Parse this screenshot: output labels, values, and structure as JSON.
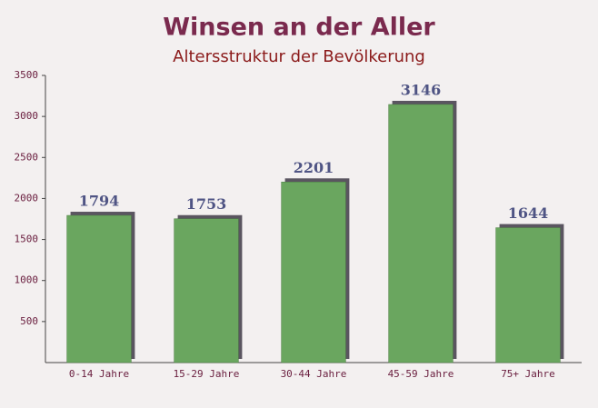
{
  "chart_data": {
    "type": "bar",
    "title": "Winsen an der Aller",
    "subtitle": "Altersstruktur der Bevölkerung",
    "categories": [
      "0-14 Jahre",
      "15-29 Jahre",
      "30-44 Jahre",
      "45-59 Jahre",
      "75+ Jahre"
    ],
    "values": [
      1794,
      1753,
      2201,
      3146,
      1644
    ],
    "color": "#6aa65f",
    "ylim": [
      0,
      3500
    ],
    "yticks": [
      500,
      1000,
      1500,
      2000,
      2500,
      3000,
      3500
    ]
  }
}
